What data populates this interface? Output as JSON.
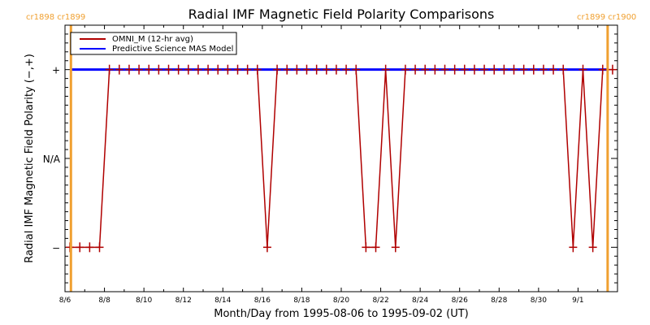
{
  "chart_data": {
    "type": "line",
    "title": "Radial IMF Magnetic Field Polarity Comparisons",
    "xlabel": "Month/Day from 1995-08-06 to 1995-09-02 (UT)",
    "ylabel": "Radial IMF Magnetic Field Polarity (−,+)",
    "x_unit": "days since 1995-08-06 00:00 UT",
    "xlim": [
      0,
      28
    ],
    "ylim": [
      -1.5,
      1.5
    ],
    "x_ticks": [
      {
        "day": 0,
        "label": "8/6"
      },
      {
        "day": 2,
        "label": "8/8"
      },
      {
        "day": 4,
        "label": "8/10"
      },
      {
        "day": 6,
        "label": "8/12"
      },
      {
        "day": 8,
        "label": "8/14"
      },
      {
        "day": 10,
        "label": "8/16"
      },
      {
        "day": 12,
        "label": "8/18"
      },
      {
        "day": 14,
        "label": "8/20"
      },
      {
        "day": 16,
        "label": "8/22"
      },
      {
        "day": 18,
        "label": "8/24"
      },
      {
        "day": 20,
        "label": "8/26"
      },
      {
        "day": 22,
        "label": "8/28"
      },
      {
        "day": 24,
        "label": "8/30"
      },
      {
        "day": 26,
        "label": "9/1"
      }
    ],
    "y_ticks": [
      {
        "value": 1,
        "label": "+"
      },
      {
        "value": 0,
        "label": "N/A"
      },
      {
        "value": -1,
        "label": "−"
      }
    ],
    "carrington_markers": [
      {
        "day": 0.3,
        "label": "cr1898 cr1899",
        "position": "top-left"
      },
      {
        "day": 27.5,
        "label": "cr1899 cr1900",
        "position": "top-right"
      }
    ],
    "legend": {
      "placement": "top-left",
      "entries": [
        {
          "name": "OMNI_M (12-hr avg)",
          "color": "#b00000"
        },
        {
          "name": "Predictive Science MAS Model",
          "color": "#0000ff"
        }
      ]
    },
    "series": [
      {
        "name": "OMNI_M (12-hr avg)",
        "color": "#b00000",
        "x_start": 0.25,
        "x_step": 0.5,
        "values": [
          -1,
          -1,
          -1,
          -1,
          1,
          1,
          1,
          1,
          1,
          1,
          1,
          1,
          1,
          1,
          1,
          1,
          1,
          1,
          1,
          1,
          -1,
          1,
          1,
          1,
          1,
          1,
          1,
          1,
          1,
          1,
          -1,
          -1,
          1,
          -1,
          1,
          1,
          1,
          1,
          1,
          1,
          1,
          1,
          1,
          1,
          1,
          1,
          1,
          1,
          1,
          1,
          1,
          -1,
          1,
          -1,
          1,
          1
        ]
      },
      {
        "name": "Predictive Science MAS Model",
        "color": "#0000ff",
        "x": [
          0.3,
          27.5
        ],
        "values": [
          1,
          1
        ]
      }
    ],
    "cr_line_color": "#f0a030"
  }
}
